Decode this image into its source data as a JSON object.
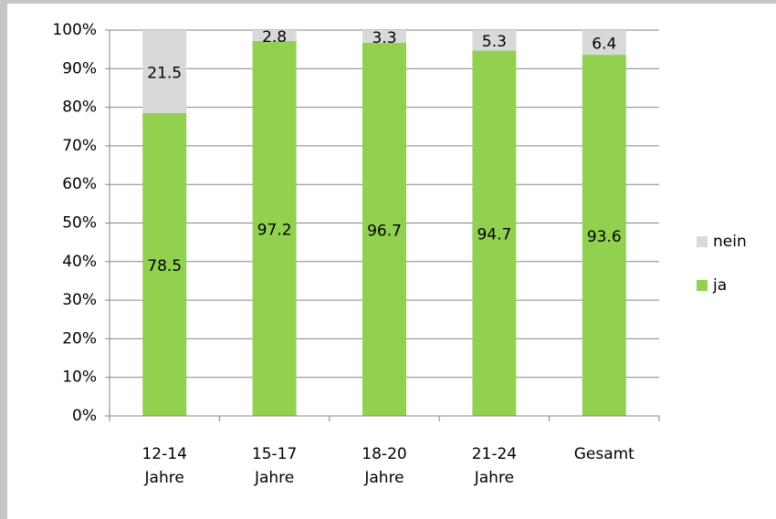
{
  "chart_data": {
    "type": "stacked_bar",
    "categories": [
      [
        "12-14",
        "Jahre"
      ],
      [
        "15-17",
        "Jahre"
      ],
      [
        "18-20",
        "Jahre"
      ],
      [
        "21-24",
        "Jahre"
      ],
      [
        "Gesamt"
      ]
    ],
    "series": [
      {
        "name": "ja",
        "color": "#92d050",
        "values": [
          78.5,
          97.2,
          96.7,
          94.7,
          93.6
        ]
      },
      {
        "name": "nein",
        "color": "#d9d9d9",
        "values": [
          21.5,
          2.8,
          3.3,
          5.3,
          6.4
        ]
      }
    ],
    "ylim": [
      0,
      100
    ],
    "yticks": [
      {
        "value": 0,
        "label": "0%"
      },
      {
        "value": 10,
        "label": "10%"
      },
      {
        "value": 20,
        "label": "20%"
      },
      {
        "value": 30,
        "label": "30%"
      },
      {
        "value": 40,
        "label": "40%"
      },
      {
        "value": 50,
        "label": "50%"
      },
      {
        "value": 60,
        "label": "60%"
      },
      {
        "value": 70,
        "label": "70%"
      },
      {
        "value": 80,
        "label": "80%"
      },
      {
        "value": 90,
        "label": "90%"
      },
      {
        "value": 100,
        "label": "100%"
      }
    ],
    "grid": true,
    "legend": "right"
  }
}
